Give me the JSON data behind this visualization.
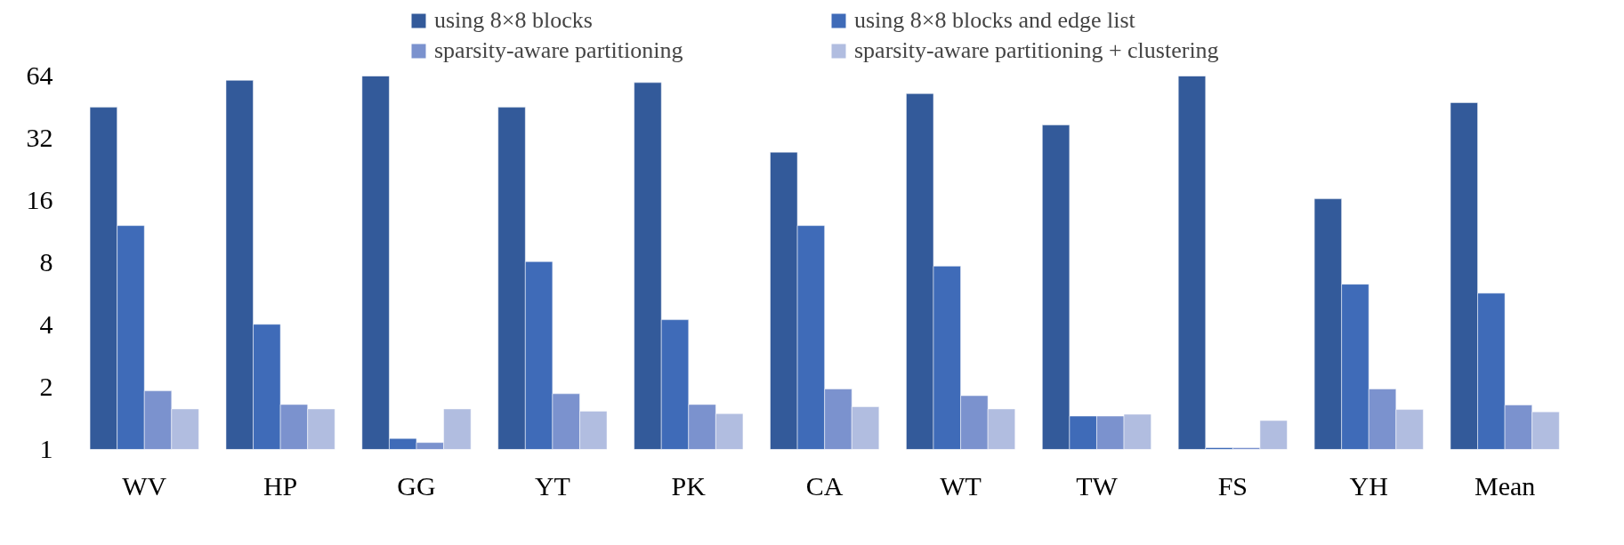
{
  "chart_data": {
    "type": "bar",
    "categories": [
      "WV",
      "HP",
      "GG",
      "YT",
      "PK",
      "CA",
      "WT",
      "TW",
      "FS",
      "YH",
      "Mean"
    ],
    "series": [
      {
        "name": "using 8×8 blocks",
        "color": "#335a9a",
        "values": [
          45.2,
          61,
          64,
          45.2,
          59.5,
          27.4,
          52.6,
          37.1,
          64,
          16.3,
          47.6
        ]
      },
      {
        "name": "using 8×8 blocks and edge list",
        "color": "#3f6bb8",
        "values": [
          12.1,
          4.03,
          1.13,
          8.1,
          4.24,
          12.1,
          7.7,
          1.45,
          1.02,
          6.3,
          5.7
        ]
      },
      {
        "name": "sparsity-aware partitioning",
        "color": "#7b92ce",
        "values": [
          1.92,
          1.65,
          1.08,
          1.86,
          1.65,
          1.96,
          1.82,
          1.45,
          1.02,
          1.96,
          1.64
        ]
      },
      {
        "name": "sparsity-aware partitioning + clustering",
        "color": "#b1bde0",
        "values": [
          1.57,
          1.57,
          1.57,
          1.53,
          1.49,
          1.61,
          1.57,
          1.48,
          1.38,
          1.56,
          1.52
        ]
      }
    ],
    "log": "y",
    "ylim": [
      1,
      64
    ],
    "yticks": [
      1,
      2,
      4,
      8,
      16,
      32,
      64
    ],
    "grid": false,
    "legend": "top"
  }
}
